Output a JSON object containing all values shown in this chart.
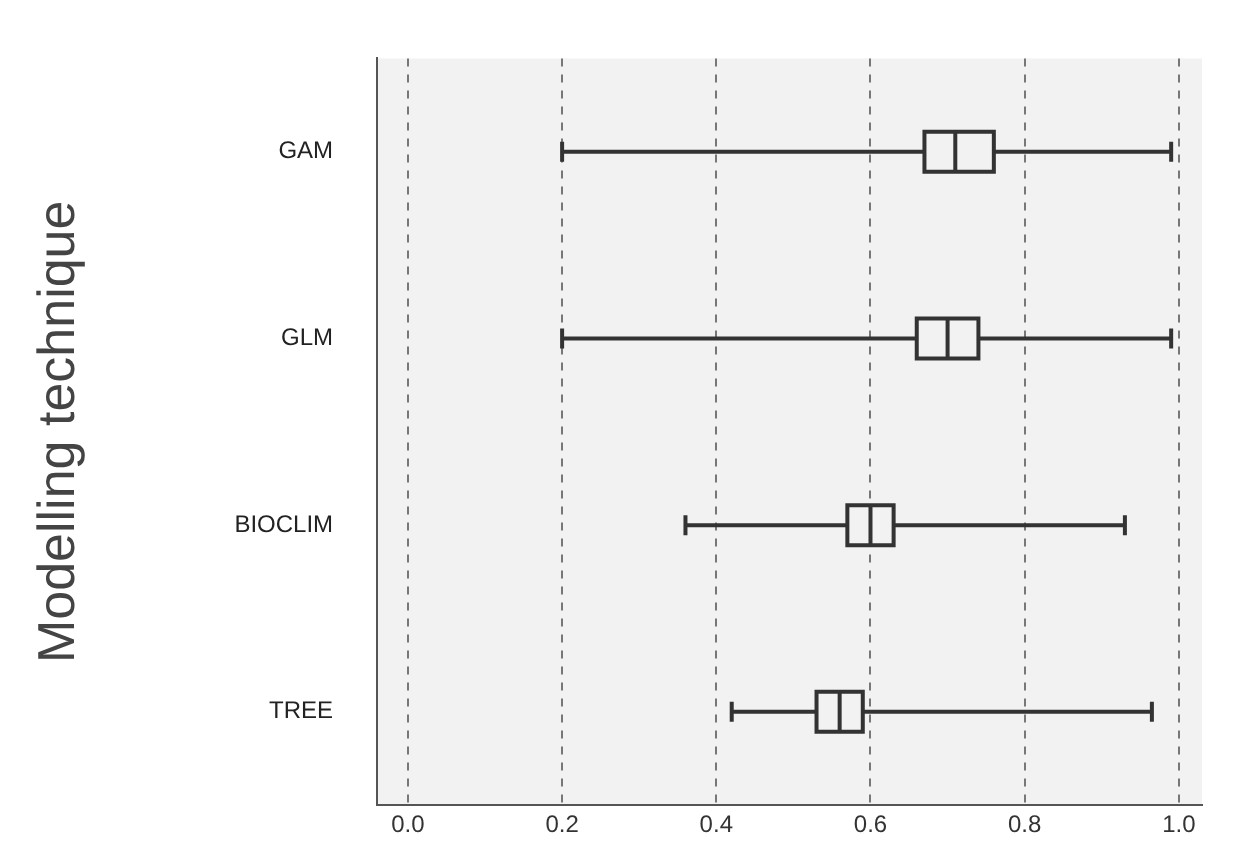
{
  "chart_data": {
    "type": "box",
    "orientation": "horizontal",
    "ylabel": "Modelling technique",
    "categories": [
      "GAM",
      "GLM",
      "BIOCLIM",
      "TREE"
    ],
    "color": "#333333",
    "boxes": [
      {
        "low": 0.2,
        "q1": 0.67,
        "median": 0.71,
        "q3": 0.76,
        "high": 0.99
      },
      {
        "low": 0.2,
        "q1": 0.66,
        "median": 0.7,
        "q3": 0.74,
        "high": 0.99
      },
      {
        "low": 0.36,
        "q1": 0.57,
        "median": 0.6,
        "q3": 0.63,
        "high": 0.93
      },
      {
        "low": 0.42,
        "q1": 0.53,
        "median": 0.56,
        "q3": 0.59,
        "high": 0.965
      }
    ],
    "xlim": [
      -0.04,
      1.03
    ],
    "xticks": [
      {
        "value": 0,
        "label": "0.0"
      },
      0.2,
      0.4,
      0.6,
      0.8,
      {
        "value": 1,
        "label": "1.0"
      }
    ],
    "grid": "x"
  }
}
